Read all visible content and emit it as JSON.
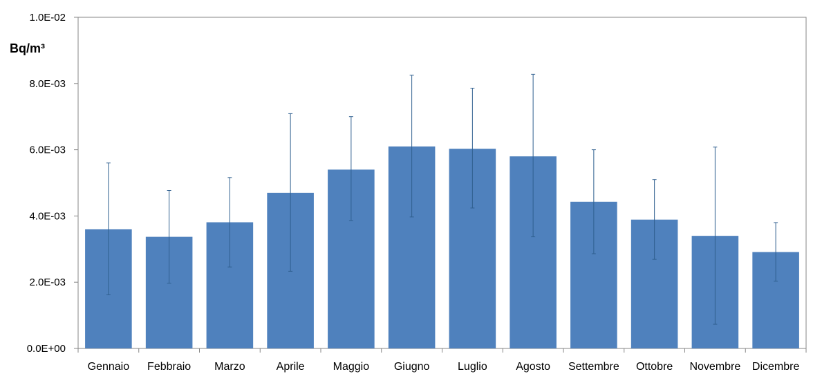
{
  "chart_data": {
    "type": "bar",
    "title": "",
    "xlabel": "",
    "ylabel": "Bq/m³",
    "ylim": [
      0,
      0.01
    ],
    "yticks": [
      0,
      0.002,
      0.004,
      0.006,
      0.008,
      0.01
    ],
    "ytick_labels": [
      "0.0E+00",
      "2.0E-03",
      "4.0E-03",
      "6.0E-03",
      "8.0E-03",
      "1.0E-02"
    ],
    "grid": false,
    "legend": "none",
    "bar_color": "#4f81bd",
    "errorbar_color": "#2f5f8f",
    "categories": [
      "Gennaio",
      "Febbraio",
      "Marzo",
      "Aprile",
      "Maggio",
      "Giugno",
      "Luglio",
      "Agosto",
      "Settembre",
      "Ottobre",
      "Novembre",
      "Dicembre"
    ],
    "values": [
      0.0036,
      0.00337,
      0.00381,
      0.0047,
      0.0054,
      0.0061,
      0.00603,
      0.0058,
      0.00443,
      0.00389,
      0.0034,
      0.00291
    ],
    "error_low": [
      0.00162,
      0.00197,
      0.00246,
      0.00233,
      0.00386,
      0.00397,
      0.00424,
      0.00337,
      0.00286,
      0.00269,
      0.00073,
      0.00203
    ],
    "error_high": [
      0.0056,
      0.00477,
      0.00516,
      0.00709,
      0.007,
      0.00825,
      0.00786,
      0.00828,
      0.006,
      0.0051,
      0.00608,
      0.0038
    ]
  }
}
